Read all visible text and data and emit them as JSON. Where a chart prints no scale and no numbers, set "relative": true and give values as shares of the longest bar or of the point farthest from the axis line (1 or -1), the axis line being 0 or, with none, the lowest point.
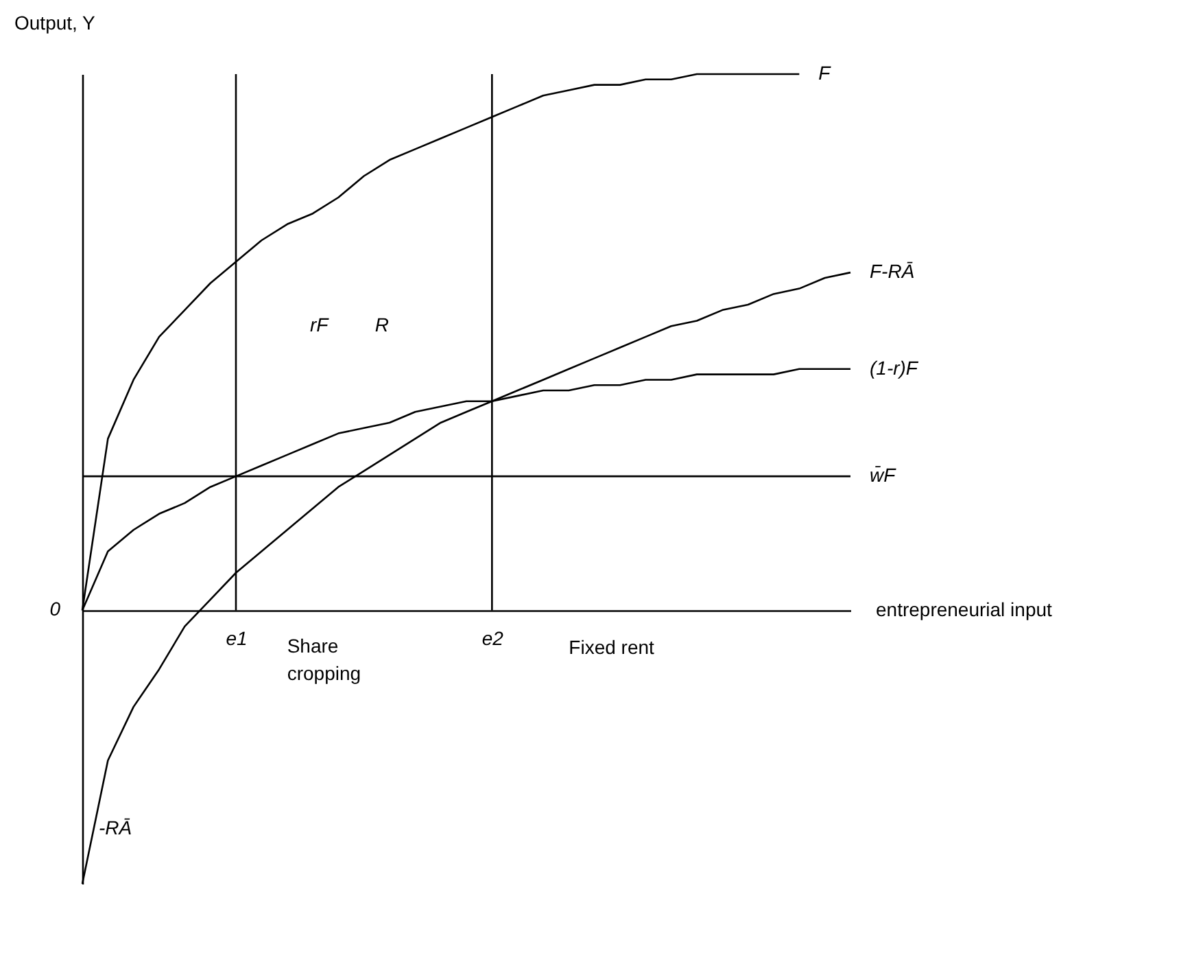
{
  "chart_data": {
    "type": "line",
    "relative": true,
    "ylabel": "Output, Y",
    "xlabel": "entrepreneurial input",
    "categories": [
      null,
      null,
      null,
      null,
      null,
      null,
      "e1",
      null,
      null,
      null,
      null,
      null,
      null,
      null,
      null,
      null,
      "e2",
      null,
      null,
      null,
      null,
      null,
      null,
      null,
      null,
      null,
      null,
      null,
      null,
      null,
      null
    ],
    "series": [
      {
        "name": "F",
        "color": "#000000",
        "values": [
          0,
          0.32,
          0.43,
          0.51,
          0.56,
          0.61,
          0.65,
          0.69,
          0.72,
          0.74,
          0.77,
          0.81,
          0.84,
          0.86,
          0.88,
          0.9,
          0.92,
          0.94,
          0.96,
          0.97,
          0.98,
          0.98,
          0.99,
          0.99,
          1,
          1,
          1,
          1,
          1,
          null,
          null
        ]
      },
      {
        "name": "F-RĀ",
        "color": "#000000",
        "values": [
          -0.51,
          -0.28,
          -0.18,
          -0.11,
          -0.03,
          0.02,
          0.07,
          0.11,
          0.15,
          0.19,
          0.23,
          0.26,
          0.29,
          0.32,
          0.35,
          0.37,
          0.39,
          0.41,
          0.43,
          0.45,
          0.47,
          0.49,
          0.51,
          0.53,
          0.54,
          0.56,
          0.57,
          0.59,
          0.6,
          0.62,
          0.63
        ]
      },
      {
        "name": "(1-r)F",
        "color": "#000000",
        "values": [
          0,
          0.11,
          0.15,
          0.18,
          0.2,
          0.23,
          0.25,
          0.27,
          0.29,
          0.31,
          0.33,
          0.34,
          0.35,
          0.37,
          0.38,
          0.39,
          0.39,
          0.4,
          0.41,
          0.41,
          0.42,
          0.42,
          0.43,
          0.43,
          0.44,
          0.44,
          0.44,
          0.44,
          0.45,
          0.45,
          0.45
        ]
      },
      {
        "name": "w̄F",
        "color": "#000000",
        "values": [
          0.25,
          0.25,
          0.25,
          0.25,
          0.25,
          0.25,
          0.25,
          0.25,
          0.25,
          0.25,
          0.25,
          0.25,
          0.25,
          0.25,
          0.25,
          0.25,
          0.25,
          0.25,
          0.25,
          0.25,
          0.25,
          0.25,
          0.25,
          0.25,
          0.25,
          0.25,
          0.25,
          0.25,
          0.25,
          0.25,
          0.25
        ]
      }
    ],
    "ref_lines": [
      {
        "axis": "x",
        "value": "e1"
      },
      {
        "axis": "x",
        "value": "e2"
      }
    ],
    "annotations": [
      "0",
      "-RĀ",
      "rF",
      "R",
      "Share cropping",
      "Fixed rent"
    ],
    "legend": false,
    "marker": "none",
    "line_style": "solid",
    "grid": false
  }
}
